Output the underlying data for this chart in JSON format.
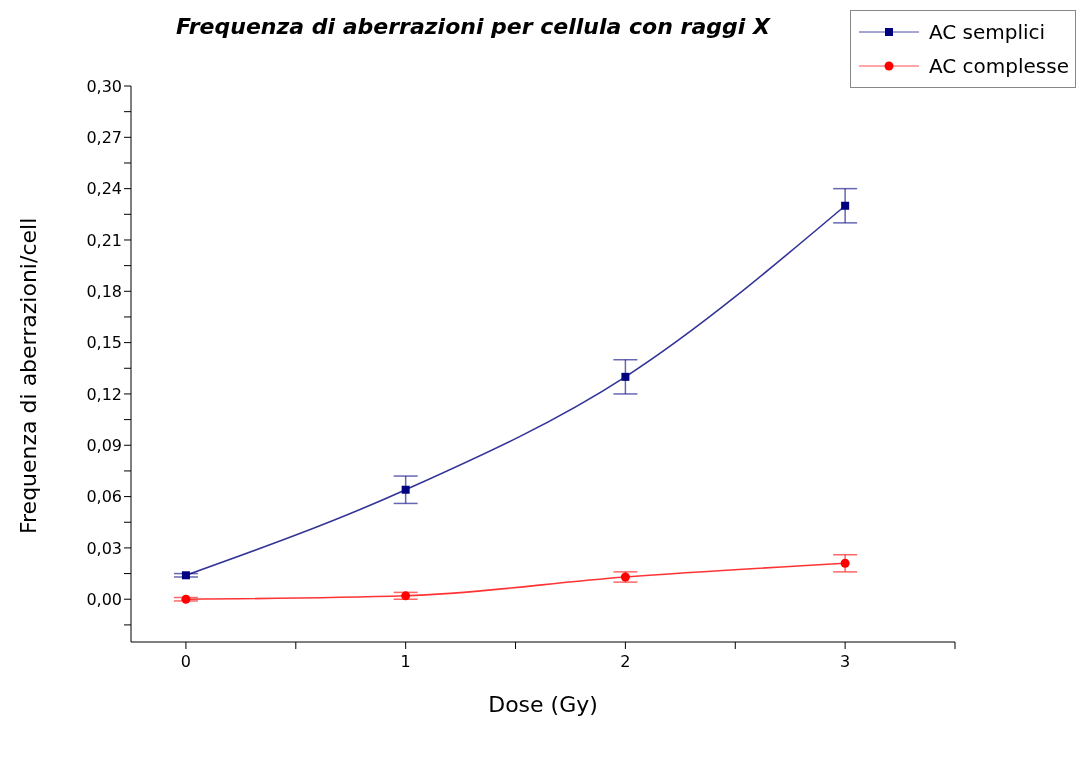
{
  "chart_data": {
    "type": "line",
    "title": "Frequenza di aberrazioni per cellula con raggi X",
    "xlabel": "Dose (Gy)",
    "ylabel": "Frequenza di aberrazioni/cell",
    "x": [
      0,
      1,
      2,
      3
    ],
    "series": [
      {
        "name": "AC semplici",
        "color": "#000080",
        "marker": "square",
        "values": [
          0.014,
          0.064,
          0.13,
          0.23
        ],
        "errors": [
          0.001,
          0.008,
          0.01,
          0.01
        ]
      },
      {
        "name": "AC complesse",
        "color": "#ff0000",
        "marker": "circle",
        "values": [
          0,
          0.002,
          0.013,
          0.021
        ],
        "errors": [
          0.001,
          0.002,
          0.003,
          0.005
        ]
      }
    ],
    "xlim": [
      -0.25,
      3.5
    ],
    "xticks": [
      0,
      {
        "value": 0.5,
        "label": null
      },
      1,
      {
        "value": 1.5,
        "label": null
      },
      2,
      {
        "value": 2.5,
        "label": null
      },
      3,
      {
        "value": 3.5,
        "label": null
      }
    ],
    "ylim": [
      -0.025,
      0.3
    ],
    "yticks": [
      {
        "value": -0.015,
        "label": null
      },
      {
        "value": 0,
        "label": "0,00"
      },
      {
        "value": 0.015,
        "label": null
      },
      {
        "value": 0.03,
        "label": "0,03"
      },
      {
        "value": 0.045,
        "label": null
      },
      {
        "value": 0.06,
        "label": "0,06"
      },
      {
        "value": 0.075,
        "label": null
      },
      {
        "value": 0.09,
        "label": "0,09"
      },
      {
        "value": 0.105,
        "label": null
      },
      {
        "value": 0.12,
        "label": "0,12"
      },
      {
        "value": 0.135,
        "label": null
      },
      {
        "value": 0.15,
        "label": "0,15"
      },
      {
        "value": 0.165,
        "label": null
      },
      {
        "value": 0.18,
        "label": "0,18"
      },
      {
        "value": 0.195,
        "label": null
      },
      {
        "value": 0.21,
        "label": "0,21"
      },
      {
        "value": 0.225,
        "label": null
      },
      {
        "value": 0.24,
        "label": "0,24"
      },
      {
        "value": 0.255,
        "label": null
      },
      {
        "value": 0.27,
        "label": "0,27"
      },
      {
        "value": 0.285,
        "label": null
      },
      {
        "value": 0.3,
        "label": "0,30"
      }
    ],
    "grid": false,
    "legend": "top right",
    "line_style": "solid"
  }
}
